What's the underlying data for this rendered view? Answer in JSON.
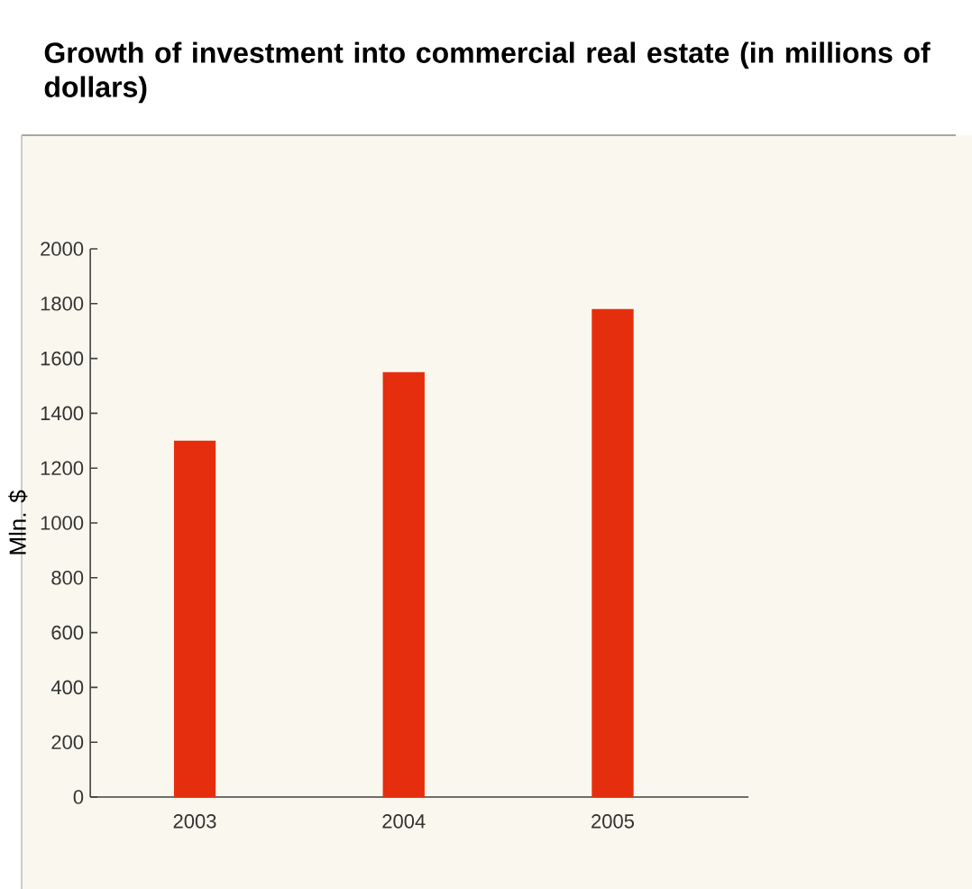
{
  "chart_data": {
    "type": "bar",
    "title": "Growth of investment into commercial real estate (in millions of dollars)",
    "ylabel": "Mln. $",
    "categories": [
      "2003",
      "2004",
      "2005"
    ],
    "values": [
      1300,
      1550,
      1780
    ],
    "color": "#e52e0d",
    "ylim": [
      0,
      2000
    ],
    "yticks": [
      0,
      200,
      400,
      600,
      800,
      1000,
      1200,
      1400,
      1600,
      1800,
      2000
    ],
    "grid": false
  }
}
